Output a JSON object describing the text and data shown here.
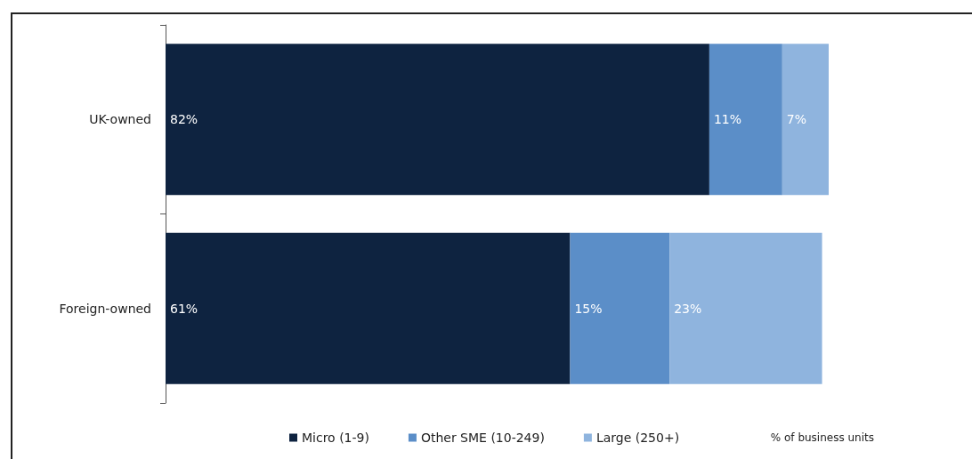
{
  "chart_data": {
    "type": "bar",
    "orientation": "horizontal",
    "stacked": true,
    "legend": "bottom",
    "xlabel": "% of business units",
    "categories": [
      "UK-owned",
      "Foreign-owned"
    ],
    "series": [
      {
        "name": "Micro (1-9)",
        "color": "#0e2340",
        "values": [
          82,
          61
        ],
        "value_labels": [
          "82%",
          "61%"
        ]
      },
      {
        "name": "Other SME (10-249)",
        "color": "#5b8ec8",
        "values": [
          11,
          15
        ],
        "value_labels": [
          "11%",
          "15%"
        ]
      },
      {
        "name": "Large (250+)",
        "color": "#8fb4de",
        "values": [
          7,
          23
        ],
        "value_labels": [
          "7%",
          "23%"
        ]
      }
    ]
  }
}
